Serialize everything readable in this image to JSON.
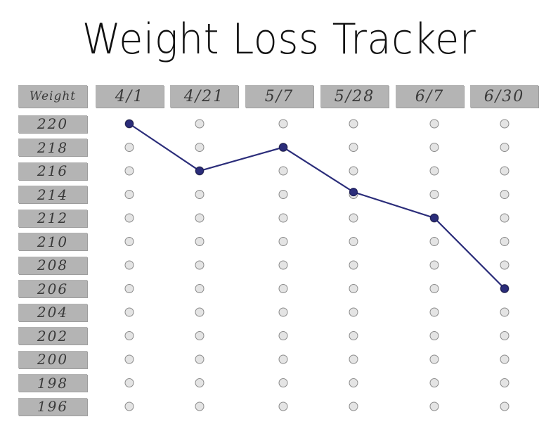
{
  "chart_data": {
    "type": "line",
    "title": "Weight Loss Tracker",
    "row_header": "Weight",
    "categories": [
      "4/1",
      "4/21",
      "5/7",
      "5/28",
      "6/7",
      "6/30"
    ],
    "weights": [
      "220",
      "218",
      "216",
      "214",
      "212",
      "210",
      "208",
      "206",
      "204",
      "202",
      "200",
      "198",
      "196"
    ],
    "series": [
      {
        "values": [
          220,
          216,
          218,
          214.2,
          212,
          206
        ]
      }
    ],
    "ylim": [
      196,
      220
    ],
    "colors": {
      "line": "#2b2d7a",
      "marker": "#2b2d7a",
      "empty_circle": "#e4e4e4",
      "empty_stroke": "#8a8a8a",
      "header_bg": "#b4b4b4"
    }
  }
}
